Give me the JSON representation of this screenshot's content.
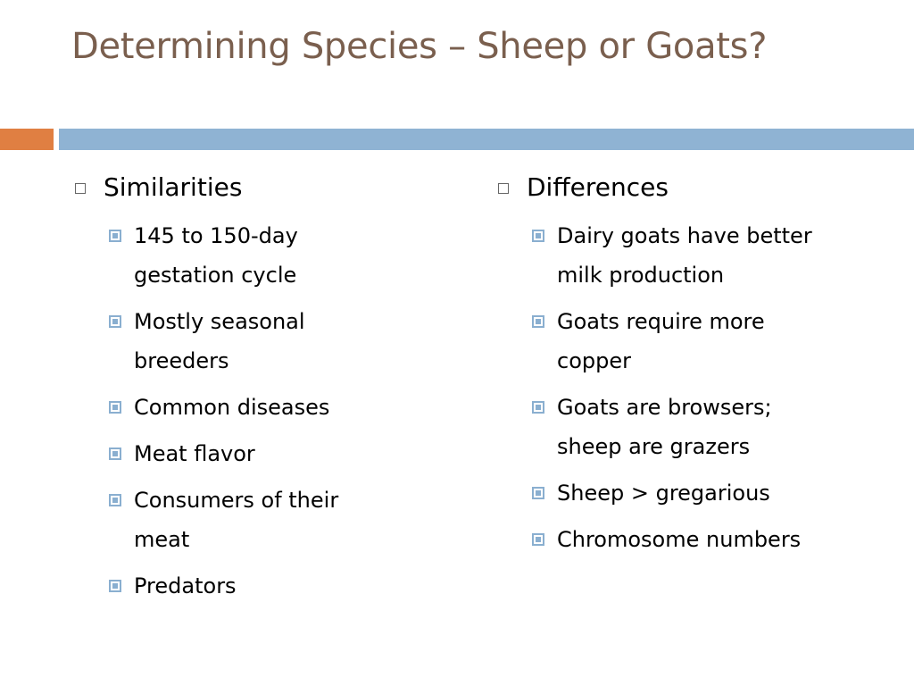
{
  "slide": {
    "title": "Determining Species – Sheep or Goats?",
    "colors": {
      "title": "#7a5f4e",
      "accent": "#e07f42",
      "rule": "#8fb3d3",
      "bullet": "#8aafd0"
    }
  },
  "columns": [
    {
      "heading": "Similarities",
      "items": [
        "145 to 150-day gestation cycle",
        "Mostly seasonal breeders",
        "Common diseases",
        "Meat flavor",
        "Consumers of their meat",
        "Predators"
      ]
    },
    {
      "heading": "Differences",
      "items": [
        "Dairy goats have better milk production",
        "Goats require more copper",
        "Goats are browsers; sheep are grazers",
        "Sheep > gregarious",
        "Chromosome numbers"
      ]
    }
  ]
}
